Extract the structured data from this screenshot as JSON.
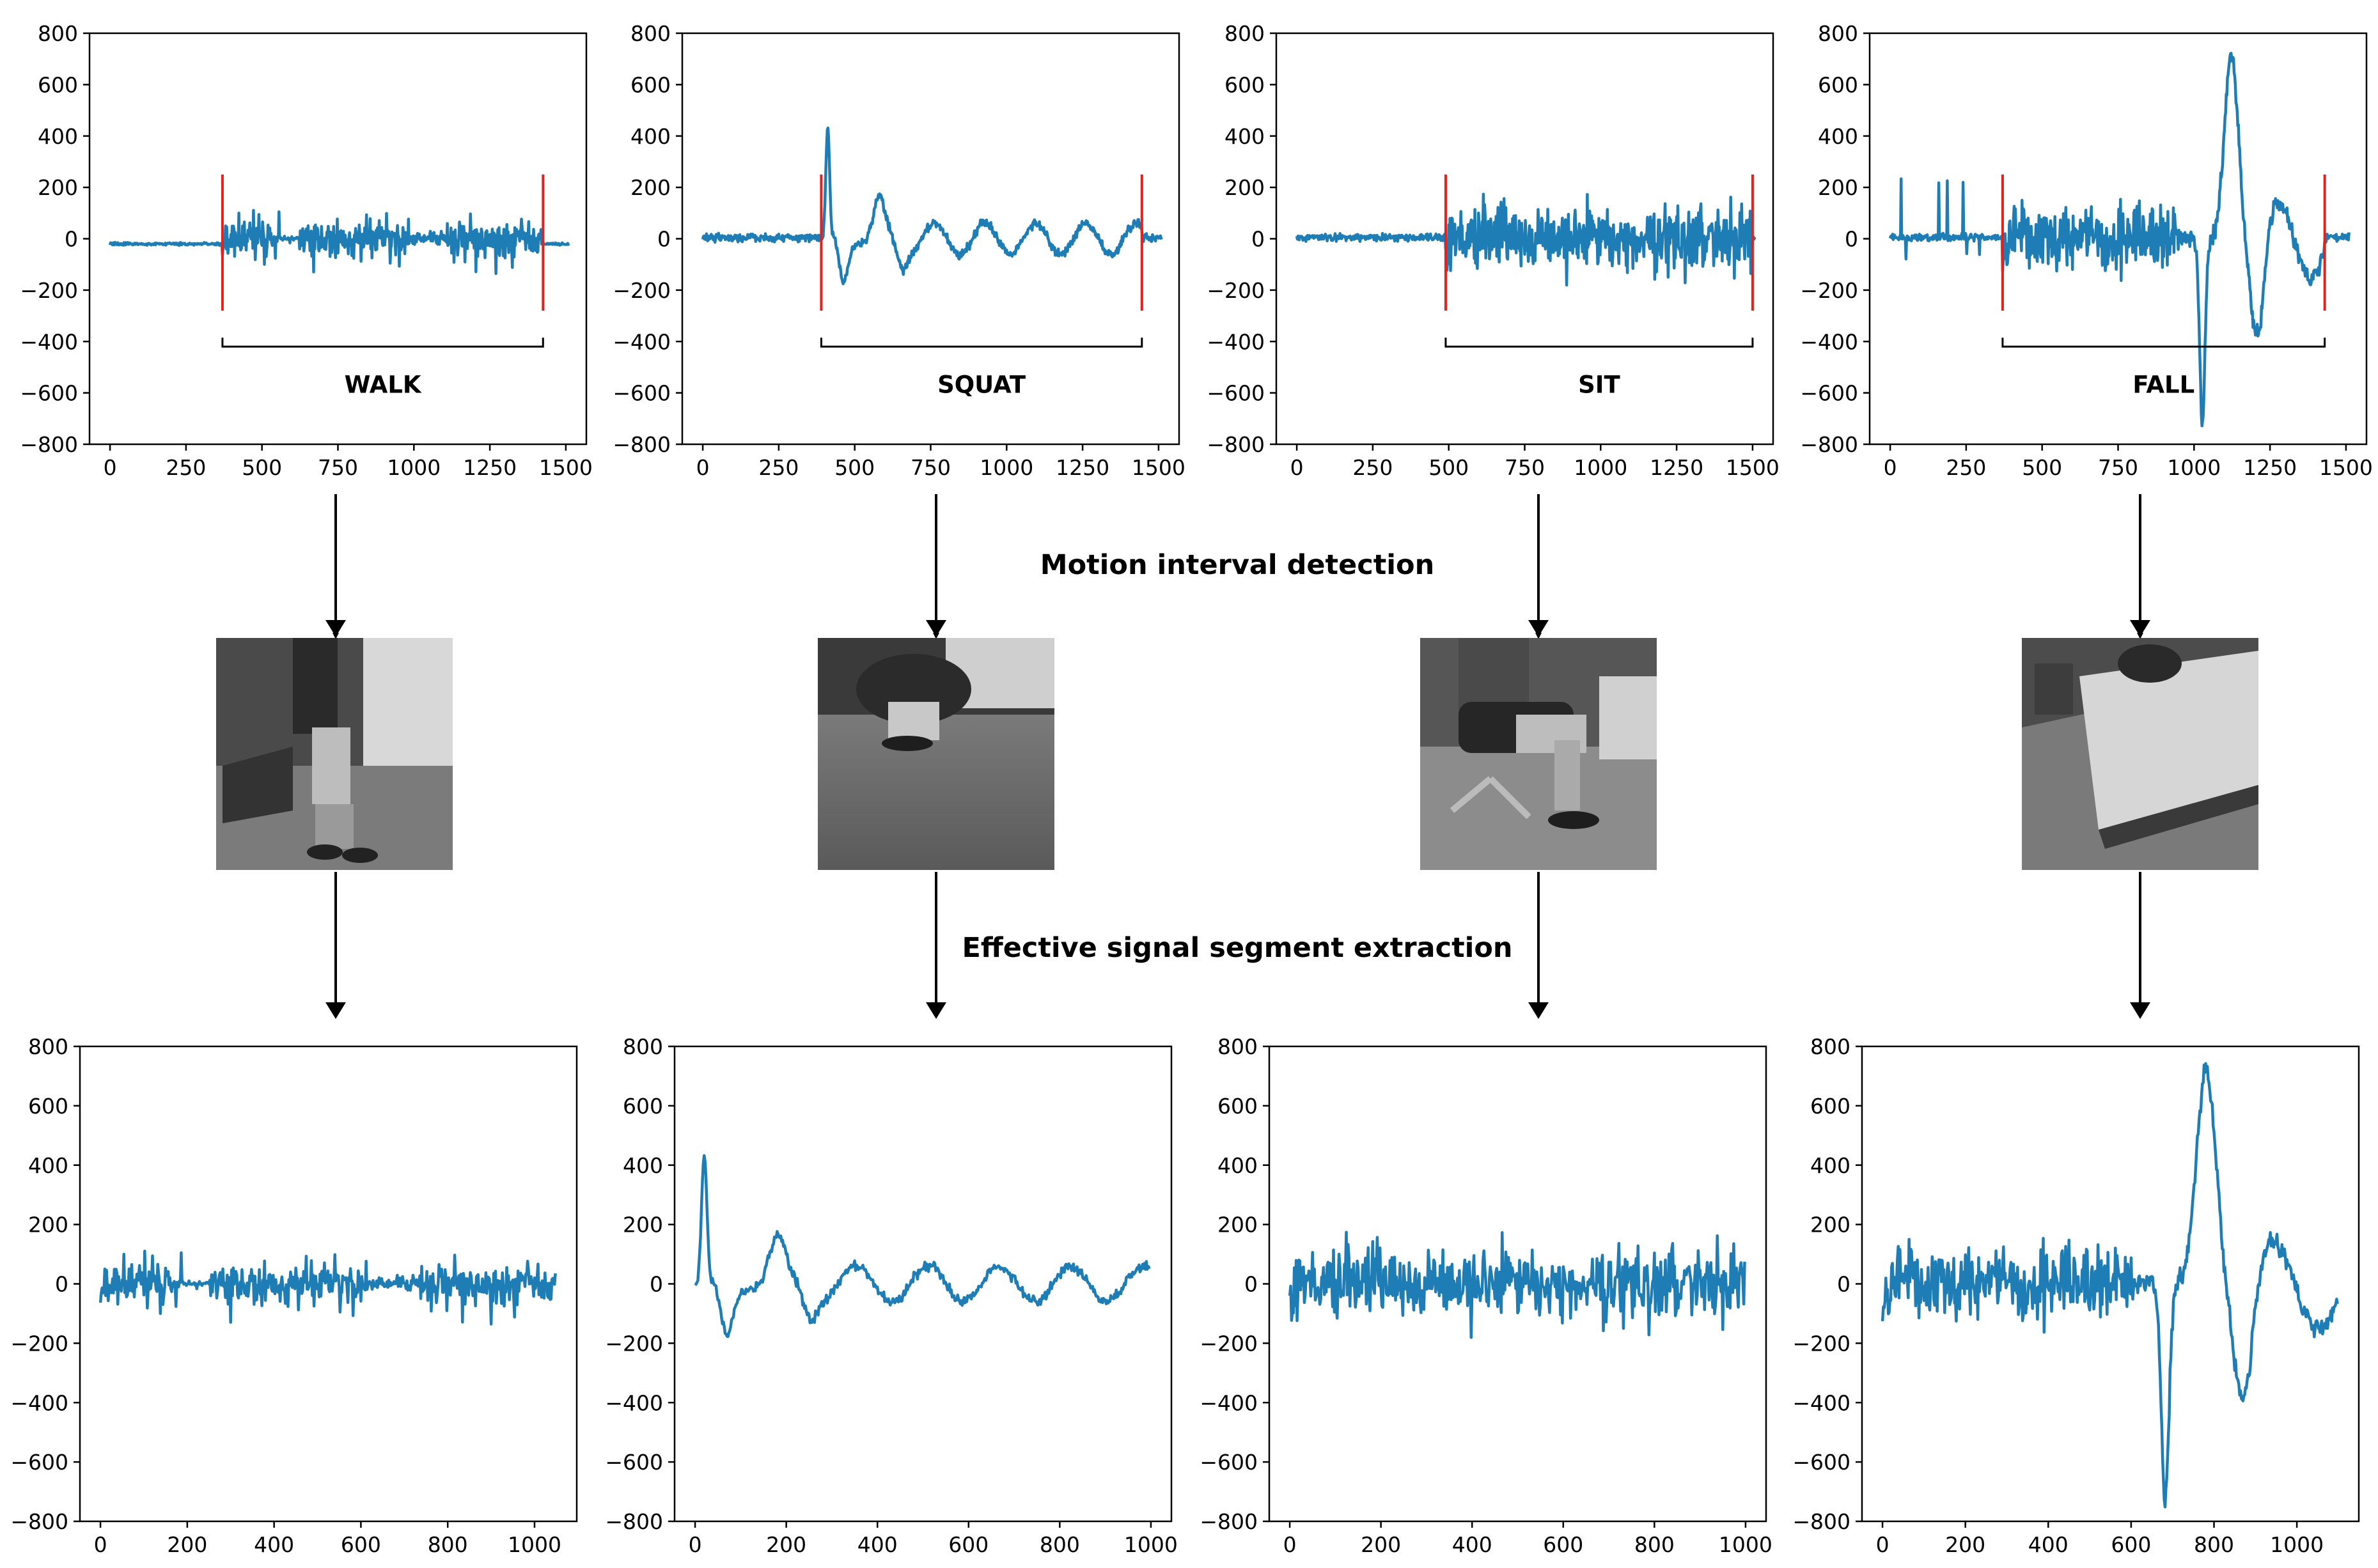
{
  "captions": {
    "motion": "Motion interval detection",
    "extraction": "Effective signal segment extraction"
  },
  "colors": {
    "signal": "#1f7db5",
    "marker": "#e8201c",
    "axis": "#000000",
    "bracket": "#000000"
  },
  "chart_data": [
    {
      "type": "line",
      "panel": "top",
      "label": "WALK",
      "xlim": [
        0,
        1500
      ],
      "ylim": [
        -800,
        800
      ],
      "xticks": [
        0,
        250,
        500,
        750,
        1000,
        1250,
        1500
      ],
      "yticks": [
        800,
        600,
        400,
        200,
        0,
        -200,
        -400,
        -600,
        -800
      ],
      "interval": [
        370,
        1425
      ],
      "amp": 150,
      "style": "walk",
      "seed": 11,
      "n": 1500
    },
    {
      "type": "line",
      "panel": "top",
      "label": "SQUAT",
      "xlim": [
        0,
        1500
      ],
      "ylim": [
        -800,
        800
      ],
      "xticks": [
        0,
        250,
        500,
        750,
        1000,
        1250,
        1500
      ],
      "yticks": [
        800,
        600,
        400,
        200,
        0,
        -200,
        -400,
        -600,
        -800
      ],
      "interval": [
        390,
        1445
      ],
      "amp": 120,
      "style": "squat",
      "seed": 23,
      "n": 1500
    },
    {
      "type": "line",
      "panel": "top",
      "label": "SIT",
      "xlim": [
        0,
        1500
      ],
      "ylim": [
        -800,
        800
      ],
      "xticks": [
        0,
        250,
        500,
        750,
        1000,
        1250,
        1500
      ],
      "yticks": [
        800,
        600,
        400,
        200,
        0,
        -200,
        -400,
        -600,
        -800
      ],
      "interval": [
        490,
        1500
      ],
      "amp": 230,
      "style": "sit",
      "seed": 37,
      "n": 1500
    },
    {
      "type": "line",
      "panel": "top",
      "label": "FALL",
      "xlim": [
        0,
        1500
      ],
      "ylim": [
        -800,
        800
      ],
      "xticks": [
        0,
        250,
        500,
        750,
        1000,
        1250,
        1500
      ],
      "yticks": [
        800,
        600,
        400,
        200,
        0,
        -200,
        -400,
        -600,
        -800
      ],
      "interval": [
        370,
        1430
      ],
      "amp": 200,
      "style": "fall",
      "seed": 53,
      "n": 1500
    },
    {
      "type": "line",
      "panel": "bottom",
      "xlim": [
        0,
        1050
      ],
      "ylim": [
        -800,
        800
      ],
      "xticks": [
        0,
        200,
        400,
        600,
        800,
        1000
      ],
      "yticks": [
        800,
        600,
        400,
        200,
        0,
        -200,
        -400,
        -600,
        -800
      ],
      "amp": 150,
      "style": "walk",
      "seed": 11,
      "n": 1050
    },
    {
      "type": "line",
      "panel": "bottom",
      "xlim": [
        0,
        1000
      ],
      "ylim": [
        -800,
        800
      ],
      "xticks": [
        0,
        200,
        400,
        600,
        800,
        1000
      ],
      "yticks": [
        800,
        600,
        400,
        200,
        0,
        -200,
        -400,
        -600,
        -800
      ],
      "amp": 120,
      "style": "squat",
      "seed": 23,
      "n": 1000
    },
    {
      "type": "line",
      "panel": "bottom",
      "xlim": [
        0,
        1000
      ],
      "ylim": [
        -800,
        800
      ],
      "xticks": [
        0,
        200,
        400,
        600,
        800,
        1000
      ],
      "yticks": [
        800,
        600,
        400,
        200,
        0,
        -200,
        -400,
        -600,
        -800
      ],
      "amp": 230,
      "style": "sit",
      "seed": 37,
      "n": 1000
    },
    {
      "type": "line",
      "panel": "bottom",
      "xlim": [
        0,
        1100
      ],
      "ylim": [
        -800,
        800
      ],
      "xticks": [
        0,
        200,
        400,
        600,
        800,
        1000
      ],
      "yticks": [
        800,
        600,
        400,
        200,
        0,
        -200,
        -400,
        -600,
        -800
      ],
      "amp": 200,
      "style": "fall",
      "seed": 53,
      "n": 1100
    }
  ]
}
